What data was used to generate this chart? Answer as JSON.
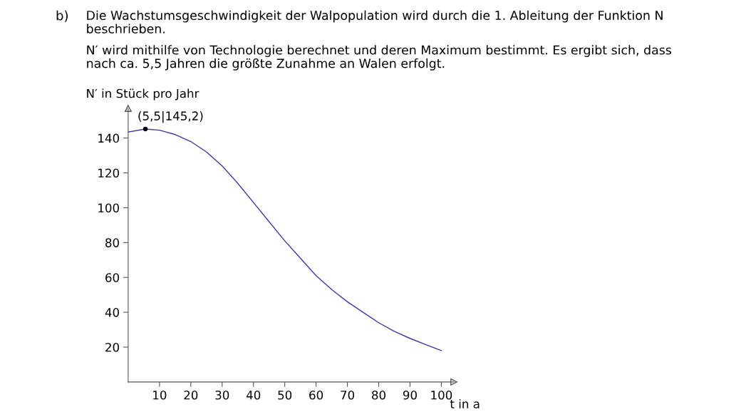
{
  "chart_data": {
    "type": "line",
    "annotations": [
      "b)",
      "Die Wachstumsgeschwindigkeit der Walpopulation wird durch die 1. Ableitung der Funktion N\nbeschrieben.",
      "N′ wird mithilfe von Technologie berechnet und deren Maximum bestimmt. Es ergibt sich, dass\nnach ca. 5,5 Jahren die größte Zunahme an Walen erfolgt.",
      {
        "text": "(5,5|145,2)",
        "x": 5.5,
        "y": 145.2
      }
    ],
    "xlabel": "t in a",
    "ylabel": "N′ in Stück pro Jahr",
    "series": [
      {
        "color": "#3a3aa0",
        "x": [
          0,
          5.5,
          10,
          15,
          20,
          25,
          30,
          35,
          40,
          45,
          50,
          55,
          60,
          65,
          70,
          75,
          80,
          85,
          90,
          95,
          100
        ],
        "values": [
          143.5,
          145.2,
          144.5,
          142,
          138,
          132,
          124,
          114,
          103,
          92,
          81,
          71,
          61,
          53,
          46,
          40,
          34,
          29,
          25,
          21.5,
          18
        ]
      },
      {
        "type": "scatter",
        "color": "#000000",
        "x": [
          5.5
        ],
        "values": [
          145.2
        ],
        "marker": "circle"
      }
    ],
    "xlim": [
      0,
      104
    ],
    "ylim": [
      0,
      157
    ],
    "xticks": [
      10,
      20,
      30,
      40,
      50,
      60,
      70,
      80,
      90,
      100
    ],
    "yticks": [
      20,
      40,
      60,
      80,
      100,
      120,
      140
    ],
    "grid": false,
    "legend": false
  }
}
